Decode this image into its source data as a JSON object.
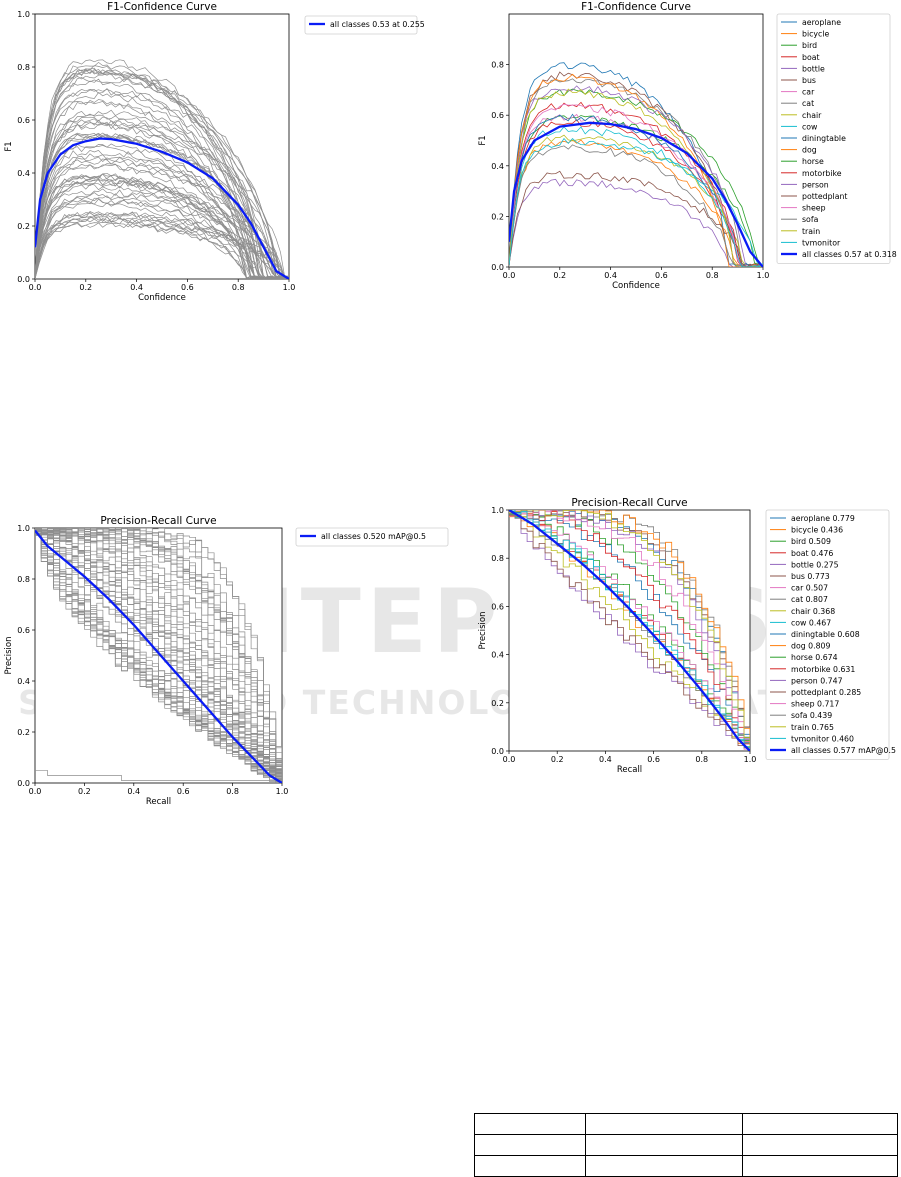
{
  "colors": {
    "all_classes": "#0a1cf5",
    "gray_curve": "#8e8e8e"
  },
  "watermark": {
    "line1": "SCITEPRESS",
    "line2": "SCIENCE AND TECHNOLOGY PUBLICATIONS"
  },
  "class_palette": [
    "#1f77b4",
    "#ff7f0e",
    "#2ca02c",
    "#d62728",
    "#9467bd",
    "#8c564b",
    "#e377c2",
    "#7f7f7f",
    "#bcbd22",
    "#17becf",
    "#1f77b4",
    "#ff7f0e",
    "#2ca02c",
    "#d62728",
    "#9467bd",
    "#8c564b",
    "#e377c2",
    "#7f7f7f",
    "#bcbd22",
    "#17becf"
  ],
  "chart_data": [
    {
      "type": "line",
      "title": "F1-Confidence Curve",
      "xlabel": "Confidence",
      "ylabel": "F1",
      "xlim": [
        0,
        1
      ],
      "ylim": [
        0,
        1
      ],
      "xticks": [
        "0.0",
        "0.2",
        "0.4",
        "0.6",
        "0.8",
        "1.0"
      ],
      "yticks": [
        "0.0",
        "0.2",
        "0.4",
        "0.6",
        "0.8",
        "1.0"
      ],
      "legend": [
        "all classes 0.53 at 0.255"
      ],
      "legend_position": "outside-right-top",
      "peak": {
        "x": 0.255,
        "y": 0.53
      },
      "class_curves": {
        "count": 60,
        "color": "gray"
      },
      "series": [
        {
          "name": "all classes 0.53 at 0.255",
          "x": [
            0,
            0.02,
            0.05,
            0.1,
            0.15,
            0.2,
            0.255,
            0.3,
            0.4,
            0.5,
            0.6,
            0.7,
            0.8,
            0.85,
            0.9,
            0.95,
            1.0
          ],
          "y": [
            0.12,
            0.3,
            0.4,
            0.47,
            0.505,
            0.52,
            0.53,
            0.528,
            0.51,
            0.48,
            0.44,
            0.38,
            0.28,
            0.21,
            0.12,
            0.03,
            0
          ]
        }
      ]
    },
    {
      "type": "line",
      "title": "F1-Confidence Curve",
      "xlabel": "Confidence",
      "ylabel": "F1",
      "xlim": [
        0,
        1
      ],
      "ylim": [
        0,
        1
      ],
      "xticks": [
        "0.0",
        "0.2",
        "0.4",
        "0.6",
        "0.8",
        "1.0"
      ],
      "yticks": [
        "0.0",
        "0.2",
        "0.4",
        "0.6",
        "0.8"
      ],
      "legend": [
        "aeroplane",
        "bicycle",
        "bird",
        "boat",
        "bottle",
        "bus",
        "car",
        "cat",
        "chair",
        "cow",
        "diningtable",
        "dog",
        "horse",
        "motorbike",
        "person",
        "pottedplant",
        "sheep",
        "sofa",
        "train",
        "tvmonitor",
        "all classes 0.57 at 0.318"
      ],
      "legend_position": "outside-right",
      "class_peaks": [
        0.81,
        0.5,
        0.6,
        0.58,
        0.34,
        0.77,
        0.6,
        0.75,
        0.52,
        0.5,
        0.6,
        0.76,
        0.7,
        0.65,
        0.72,
        0.37,
        0.64,
        0.48,
        0.7,
        0.55
      ],
      "peak": {
        "x": 0.318,
        "y": 0.57
      },
      "series": [
        {
          "name": "all classes 0.57 at 0.318",
          "x": [
            0,
            0.02,
            0.05,
            0.1,
            0.2,
            0.318,
            0.4,
            0.5,
            0.6,
            0.7,
            0.8,
            0.85,
            0.9,
            0.95,
            1.0
          ],
          "y": [
            0.1,
            0.3,
            0.42,
            0.5,
            0.555,
            0.57,
            0.565,
            0.545,
            0.51,
            0.45,
            0.35,
            0.27,
            0.17,
            0.06,
            0
          ]
        }
      ]
    },
    {
      "type": "line",
      "title": "Precision-Recall Curve",
      "xlabel": "Recall",
      "ylabel": "Precision",
      "xlim": [
        0,
        1
      ],
      "ylim": [
        0,
        1
      ],
      "xticks": [
        "0.0",
        "0.2",
        "0.4",
        "0.6",
        "0.8",
        "1.0"
      ],
      "yticks": [
        "0.0",
        "0.2",
        "0.4",
        "0.6",
        "0.8",
        "1.0"
      ],
      "legend": [
        "all classes 0.520 mAP@0.5"
      ],
      "legend_position": "outside-right-top",
      "class_curves": {
        "count": 60,
        "color": "gray"
      },
      "series": [
        {
          "name": "all classes 0.520 mAP@0.5",
          "x": [
            0,
            0.05,
            0.1,
            0.2,
            0.3,
            0.4,
            0.5,
            0.6,
            0.7,
            0.8,
            0.9,
            0.95,
            1.0
          ],
          "y": [
            0.99,
            0.93,
            0.89,
            0.81,
            0.72,
            0.62,
            0.51,
            0.4,
            0.29,
            0.18,
            0.08,
            0.03,
            0
          ]
        }
      ]
    },
    {
      "type": "line",
      "title": "Precision-Recall Curve",
      "xlabel": "Recall",
      "ylabel": "Precision",
      "xlim": [
        0,
        1
      ],
      "ylim": [
        0,
        1
      ],
      "xticks": [
        "0.0",
        "0.2",
        "0.4",
        "0.6",
        "0.8",
        "1.0"
      ],
      "yticks": [
        "0.0",
        "0.2",
        "0.4",
        "0.6",
        "0.8",
        "1.0"
      ],
      "legend": [
        "aeroplane 0.779",
        "bicycle 0.436",
        "bird 0.509",
        "boat 0.476",
        "bottle 0.275",
        "bus 0.773",
        "car 0.507",
        "cat 0.807",
        "chair 0.368",
        "cow 0.467",
        "diningtable 0.608",
        "dog 0.809",
        "horse 0.674",
        "motorbike 0.631",
        "person 0.747",
        "pottedplant 0.285",
        "sheep 0.717",
        "sofa 0.439",
        "train 0.765",
        "tvmonitor 0.460",
        "all classes 0.577 mAP@0.5"
      ],
      "legend_position": "outside-right",
      "class_ap": [
        0.779,
        0.436,
        0.509,
        0.476,
        0.275,
        0.773,
        0.507,
        0.807,
        0.368,
        0.467,
        0.608,
        0.809,
        0.674,
        0.631,
        0.747,
        0.285,
        0.717,
        0.439,
        0.765,
        0.46
      ],
      "series": [
        {
          "name": "all classes 0.577 mAP@0.5",
          "x": [
            0,
            0.05,
            0.1,
            0.2,
            0.3,
            0.4,
            0.5,
            0.6,
            0.7,
            0.8,
            0.9,
            0.95,
            1.0
          ],
          "y": [
            1.0,
            0.97,
            0.94,
            0.86,
            0.78,
            0.69,
            0.59,
            0.48,
            0.37,
            0.25,
            0.12,
            0.05,
            0
          ]
        }
      ]
    }
  ],
  "table": {
    "rows": 3,
    "cols": 3,
    "cells": [
      [
        "",
        "",
        ""
      ],
      [
        "",
        "",
        ""
      ],
      [
        "",
        "",
        ""
      ]
    ]
  }
}
